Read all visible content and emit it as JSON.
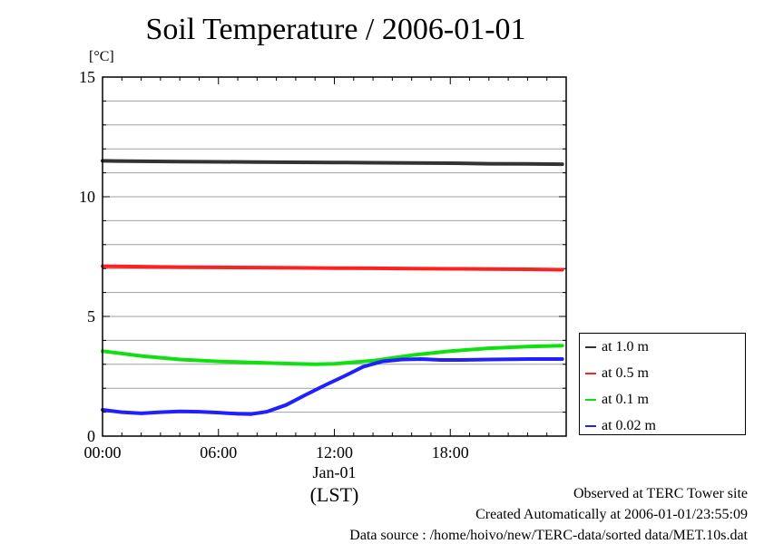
{
  "chart_data": {
    "type": "line",
    "title": "Soil Temperature / 2006-01-01",
    "ylabel": "[°C]",
    "xlabel": "(LST)",
    "date_label": "Jan-01",
    "x_ticks": [
      "00:00",
      "06:00",
      "12:00",
      "18:00"
    ],
    "x_tick_hours": [
      0,
      6,
      12,
      18
    ],
    "xlim": [
      0,
      24
    ],
    "ylim": [
      0,
      15
    ],
    "y_ticks": [
      0,
      5,
      10,
      15
    ],
    "grid": true,
    "legend_position": "right-bottom",
    "series": [
      {
        "name": "at 1.0 m",
        "color": "#333333",
        "x": [
          0,
          2,
          4,
          6,
          8,
          10,
          12,
          14,
          16,
          18,
          20,
          22,
          23.8
        ],
        "y": [
          11.5,
          11.48,
          11.47,
          11.46,
          11.45,
          11.44,
          11.43,
          11.42,
          11.41,
          11.4,
          11.38,
          11.37,
          11.36
        ]
      },
      {
        "name": "at 0.5 m",
        "color": "#ff2020",
        "x": [
          0,
          2,
          4,
          6,
          8,
          10,
          12,
          14,
          16,
          18,
          20,
          22,
          23.8
        ],
        "y": [
          7.1,
          7.08,
          7.06,
          7.05,
          7.04,
          7.03,
          7.02,
          7.01,
          7.0,
          6.99,
          6.98,
          6.97,
          6.95
        ]
      },
      {
        "name": "at 0.1 m",
        "color": "#10e010",
        "x": [
          0,
          2,
          4,
          6,
          8,
          10,
          11,
          12,
          14,
          16,
          18,
          20,
          22,
          23.8
        ],
        "y": [
          3.55,
          3.35,
          3.2,
          3.12,
          3.07,
          3.02,
          3.0,
          3.02,
          3.15,
          3.38,
          3.55,
          3.67,
          3.74,
          3.78
        ]
      },
      {
        "name": "at 0.02 m",
        "color": "#2020ff",
        "x": [
          0,
          1,
          2,
          3,
          4,
          5,
          6,
          7,
          7.7,
          8.5,
          9.5,
          10.5,
          11.5,
          12.5,
          13.5,
          14.5,
          15.5,
          16.5,
          17.5,
          18.5,
          20,
          22,
          23.8
        ],
        "y": [
          1.1,
          1.0,
          0.95,
          1.0,
          1.03,
          1.02,
          0.98,
          0.93,
          0.92,
          1.02,
          1.3,
          1.72,
          2.12,
          2.5,
          2.9,
          3.12,
          3.2,
          3.22,
          3.18,
          3.18,
          3.2,
          3.22,
          3.22
        ]
      }
    ]
  },
  "footer": {
    "line1": "Observed at TERC Tower site",
    "line2": "Created Automatically at 2006-01-01/23:55:09",
    "line3": "Data source : /home/hoivo/new/TERC-data/sorted  data/MET.10s.dat"
  }
}
